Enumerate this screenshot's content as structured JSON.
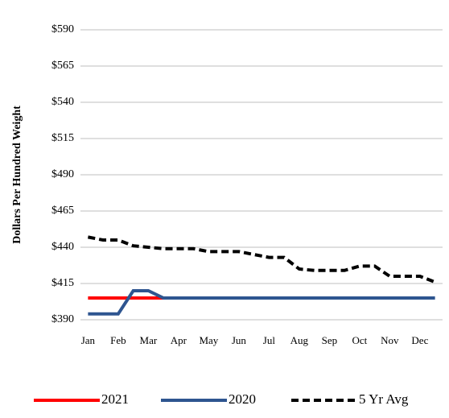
{
  "chart_data": {
    "type": "line",
    "y_label": "Dollars Per Hundred Weight",
    "categories": [
      "Jan",
      null,
      "Feb",
      null,
      "Mar",
      null,
      "Apr",
      null,
      "May",
      null,
      "Jun",
      null,
      "Jul",
      null,
      "Aug",
      null,
      "Sep",
      null,
      "Oct",
      null,
      "Nov",
      null,
      "Dec",
      null
    ],
    "series": [
      {
        "name": "2021",
        "color": "#ff0000",
        "dash": "solid",
        "values": [
          405,
          405,
          405,
          405,
          405,
          405,
          405,
          405,
          405,
          405,
          405,
          405,
          405,
          405,
          405,
          405,
          405,
          405,
          405,
          405,
          null,
          null,
          null,
          null
        ]
      },
      {
        "name": "2020",
        "color": "#2e5590",
        "dash": "solid",
        "values": [
          394,
          394,
          394,
          410,
          410,
          405,
          405,
          405,
          405,
          405,
          405,
          405,
          405,
          405,
          405,
          405,
          405,
          405,
          405,
          405,
          405,
          405,
          405,
          405
        ]
      },
      {
        "name": "5 Yr Avg",
        "color": "#000000",
        "dash": "dashed",
        "values": [
          447,
          445,
          445,
          441,
          440,
          439,
          439,
          439,
          437,
          437,
          437,
          435,
          433,
          433,
          425,
          424,
          424,
          424,
          427,
          427,
          420,
          420,
          420,
          416
        ]
      }
    ],
    "ylim": [
      390,
      590
    ],
    "yticks": [
      {
        "value": 390,
        "label": "$390"
      },
      {
        "value": 415,
        "label": "$415"
      },
      {
        "value": 440,
        "label": "$440"
      },
      {
        "value": 465,
        "label": "$465"
      },
      {
        "value": 490,
        "label": "$490"
      },
      {
        "value": 515,
        "label": "$515"
      },
      {
        "value": 540,
        "label": "$540"
      },
      {
        "value": 565,
        "label": "$565"
      },
      {
        "value": 590,
        "label": "$590"
      }
    ],
    "grid": true,
    "legend": "bottom"
  }
}
